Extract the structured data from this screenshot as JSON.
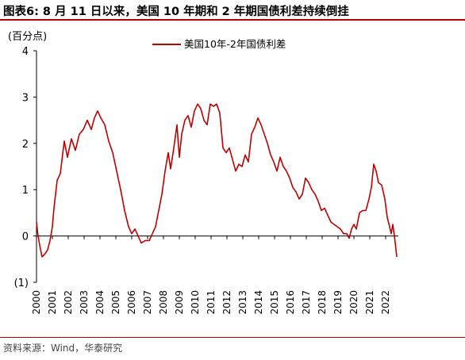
{
  "figure_title": "图表6:  8 月 11 日以来，美国 10 年期和 2 年期国债利差持续倒挂",
  "source": "资料来源：Wind，华泰研究",
  "chart_data": {
    "type": "line",
    "ylabel": "(百分点)",
    "ylim": [
      -1,
      4
    ],
    "yticks": [
      4,
      3,
      2,
      1,
      0,
      -1
    ],
    "ytick_labels": [
      "4",
      "3",
      "2",
      "1",
      "0",
      "(1)"
    ],
    "xlim": [
      2000,
      2022.8
    ],
    "xticks": [
      "2000",
      "2001",
      "2002",
      "2003",
      "2004",
      "2005",
      "2006",
      "2007",
      "2008",
      "2009",
      "2010",
      "2011",
      "2012",
      "2013",
      "2014",
      "2015",
      "2016",
      "2017",
      "2018",
      "2019",
      "2020",
      "2021",
      "2022"
    ],
    "legend_position": "top-right",
    "series": [
      {
        "name": "美国10年-2年国债利差",
        "color": "#c00000",
        "points": [
          [
            2000.0,
            0.3
          ],
          [
            2000.08,
            0.05
          ],
          [
            2000.2,
            -0.2
          ],
          [
            2000.35,
            -0.45
          ],
          [
            2000.5,
            -0.4
          ],
          [
            2000.7,
            -0.3
          ],
          [
            2000.85,
            -0.1
          ],
          [
            2001.0,
            0.2
          ],
          [
            2001.1,
            0.6
          ],
          [
            2001.3,
            1.2
          ],
          [
            2001.5,
            1.35
          ],
          [
            2001.75,
            2.05
          ],
          [
            2001.95,
            1.7
          ],
          [
            2002.2,
            2.1
          ],
          [
            2002.45,
            1.85
          ],
          [
            2002.7,
            2.2
          ],
          [
            2002.95,
            2.3
          ],
          [
            2003.2,
            2.5
          ],
          [
            2003.45,
            2.3
          ],
          [
            2003.65,
            2.55
          ],
          [
            2003.85,
            2.7
          ],
          [
            2004.05,
            2.55
          ],
          [
            2004.3,
            2.4
          ],
          [
            2004.55,
            2.05
          ],
          [
            2004.8,
            1.8
          ],
          [
            2005.05,
            1.4
          ],
          [
            2005.3,
            1.0
          ],
          [
            2005.55,
            0.55
          ],
          [
            2005.8,
            0.2
          ],
          [
            2006.0,
            0.05
          ],
          [
            2006.2,
            0.15
          ],
          [
            2006.4,
            0.0
          ],
          [
            2006.6,
            -0.15
          ],
          [
            2006.85,
            -0.1
          ],
          [
            2007.1,
            -0.1
          ],
          [
            2007.3,
            0.05
          ],
          [
            2007.5,
            0.2
          ],
          [
            2007.7,
            0.55
          ],
          [
            2007.9,
            0.9
          ],
          [
            2008.1,
            1.4
          ],
          [
            2008.3,
            1.8
          ],
          [
            2008.45,
            1.45
          ],
          [
            2008.65,
            1.9
          ],
          [
            2008.85,
            2.4
          ],
          [
            2009.0,
            1.7
          ],
          [
            2009.15,
            2.2
          ],
          [
            2009.35,
            2.5
          ],
          [
            2009.55,
            2.6
          ],
          [
            2009.75,
            2.35
          ],
          [
            2009.95,
            2.7
          ],
          [
            2010.15,
            2.85
          ],
          [
            2010.35,
            2.75
          ],
          [
            2010.55,
            2.5
          ],
          [
            2010.75,
            2.4
          ],
          [
            2010.95,
            2.85
          ],
          [
            2011.15,
            2.8
          ],
          [
            2011.35,
            2.85
          ],
          [
            2011.55,
            2.65
          ],
          [
            2011.75,
            1.9
          ],
          [
            2011.95,
            1.8
          ],
          [
            2012.15,
            1.9
          ],
          [
            2012.35,
            1.65
          ],
          [
            2012.55,
            1.4
          ],
          [
            2012.75,
            1.55
          ],
          [
            2012.95,
            1.5
          ],
          [
            2013.15,
            1.75
          ],
          [
            2013.35,
            1.6
          ],
          [
            2013.55,
            2.2
          ],
          [
            2013.75,
            2.35
          ],
          [
            2013.95,
            2.55
          ],
          [
            2014.15,
            2.4
          ],
          [
            2014.35,
            2.2
          ],
          [
            2014.55,
            2.0
          ],
          [
            2014.75,
            1.75
          ],
          [
            2014.95,
            1.6
          ],
          [
            2015.15,
            1.4
          ],
          [
            2015.35,
            1.7
          ],
          [
            2015.55,
            1.5
          ],
          [
            2015.75,
            1.4
          ],
          [
            2015.95,
            1.25
          ],
          [
            2016.15,
            1.05
          ],
          [
            2016.35,
            0.95
          ],
          [
            2016.55,
            0.8
          ],
          [
            2016.75,
            0.9
          ],
          [
            2016.95,
            1.25
          ],
          [
            2017.15,
            1.15
          ],
          [
            2017.35,
            1.0
          ],
          [
            2017.55,
            0.9
          ],
          [
            2017.75,
            0.75
          ],
          [
            2017.95,
            0.55
          ],
          [
            2018.15,
            0.6
          ],
          [
            2018.35,
            0.45
          ],
          [
            2018.55,
            0.3
          ],
          [
            2018.75,
            0.25
          ],
          [
            2018.95,
            0.2
          ],
          [
            2019.15,
            0.15
          ],
          [
            2019.35,
            0.05
          ],
          [
            2019.55,
            0.05
          ],
          [
            2019.7,
            -0.05
          ],
          [
            2019.85,
            0.15
          ],
          [
            2020.0,
            0.25
          ],
          [
            2020.15,
            0.15
          ],
          [
            2020.35,
            0.5
          ],
          [
            2020.55,
            0.55
          ],
          [
            2020.75,
            0.55
          ],
          [
            2020.95,
            0.8
          ],
          [
            2021.1,
            1.05
          ],
          [
            2021.25,
            1.55
          ],
          [
            2021.4,
            1.4
          ],
          [
            2021.55,
            1.15
          ],
          [
            2021.75,
            1.1
          ],
          [
            2021.95,
            0.8
          ],
          [
            2022.1,
            0.4
          ],
          [
            2022.25,
            0.2
          ],
          [
            2022.35,
            0.05
          ],
          [
            2022.45,
            0.25
          ],
          [
            2022.55,
            0.0
          ],
          [
            2022.62,
            -0.2
          ],
          [
            2022.7,
            -0.45
          ]
        ]
      }
    ]
  }
}
